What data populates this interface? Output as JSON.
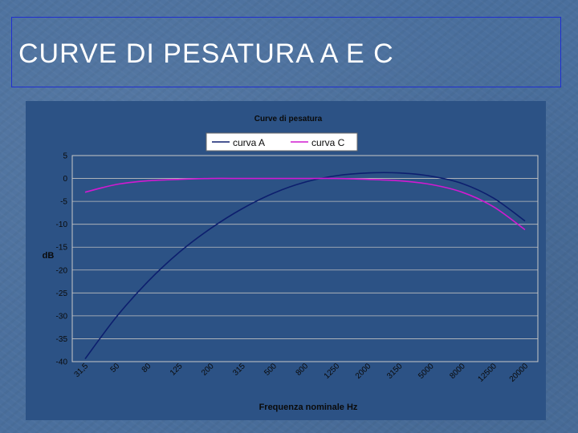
{
  "slide": {
    "title": "CURVE DI PESATURA A E C"
  },
  "chart_data": {
    "type": "line",
    "title": "Curve di pesatura",
    "xlabel": "Frequenza nominale Hz",
    "ylabel": "dB",
    "ylim": [
      -40,
      5
    ],
    "yticks": [
      5,
      0,
      -5,
      -10,
      -15,
      -20,
      -25,
      -30,
      -35,
      -40
    ],
    "grid": true,
    "legend_position": "top-center",
    "categories": [
      "31,5",
      "50",
      "80",
      "125",
      "200",
      "315",
      "500",
      "800",
      "1250",
      "2000",
      "3150",
      "5000",
      "8000",
      "12500",
      "20000"
    ],
    "series": [
      {
        "name": "curva A",
        "color": "#0d1f6e",
        "values": [
          -39.4,
          -30.2,
          -22.5,
          -16.1,
          -10.9,
          -6.6,
          -3.2,
          -0.8,
          0.6,
          1.2,
          1.2,
          0.5,
          -1.1,
          -4.3,
          -9.3
        ]
      },
      {
        "name": "curva C",
        "color": "#d11ad1",
        "values": [
          -3.0,
          -1.3,
          -0.5,
          -0.2,
          0.0,
          0.0,
          0.0,
          0.0,
          0.0,
          -0.2,
          -0.5,
          -1.3,
          -3.0,
          -6.2,
          -11.2
        ]
      }
    ],
    "colors": {
      "plot_background": "#2c5285",
      "grid": "#c0c0c0",
      "panel_border": "#c8c8c8"
    }
  }
}
